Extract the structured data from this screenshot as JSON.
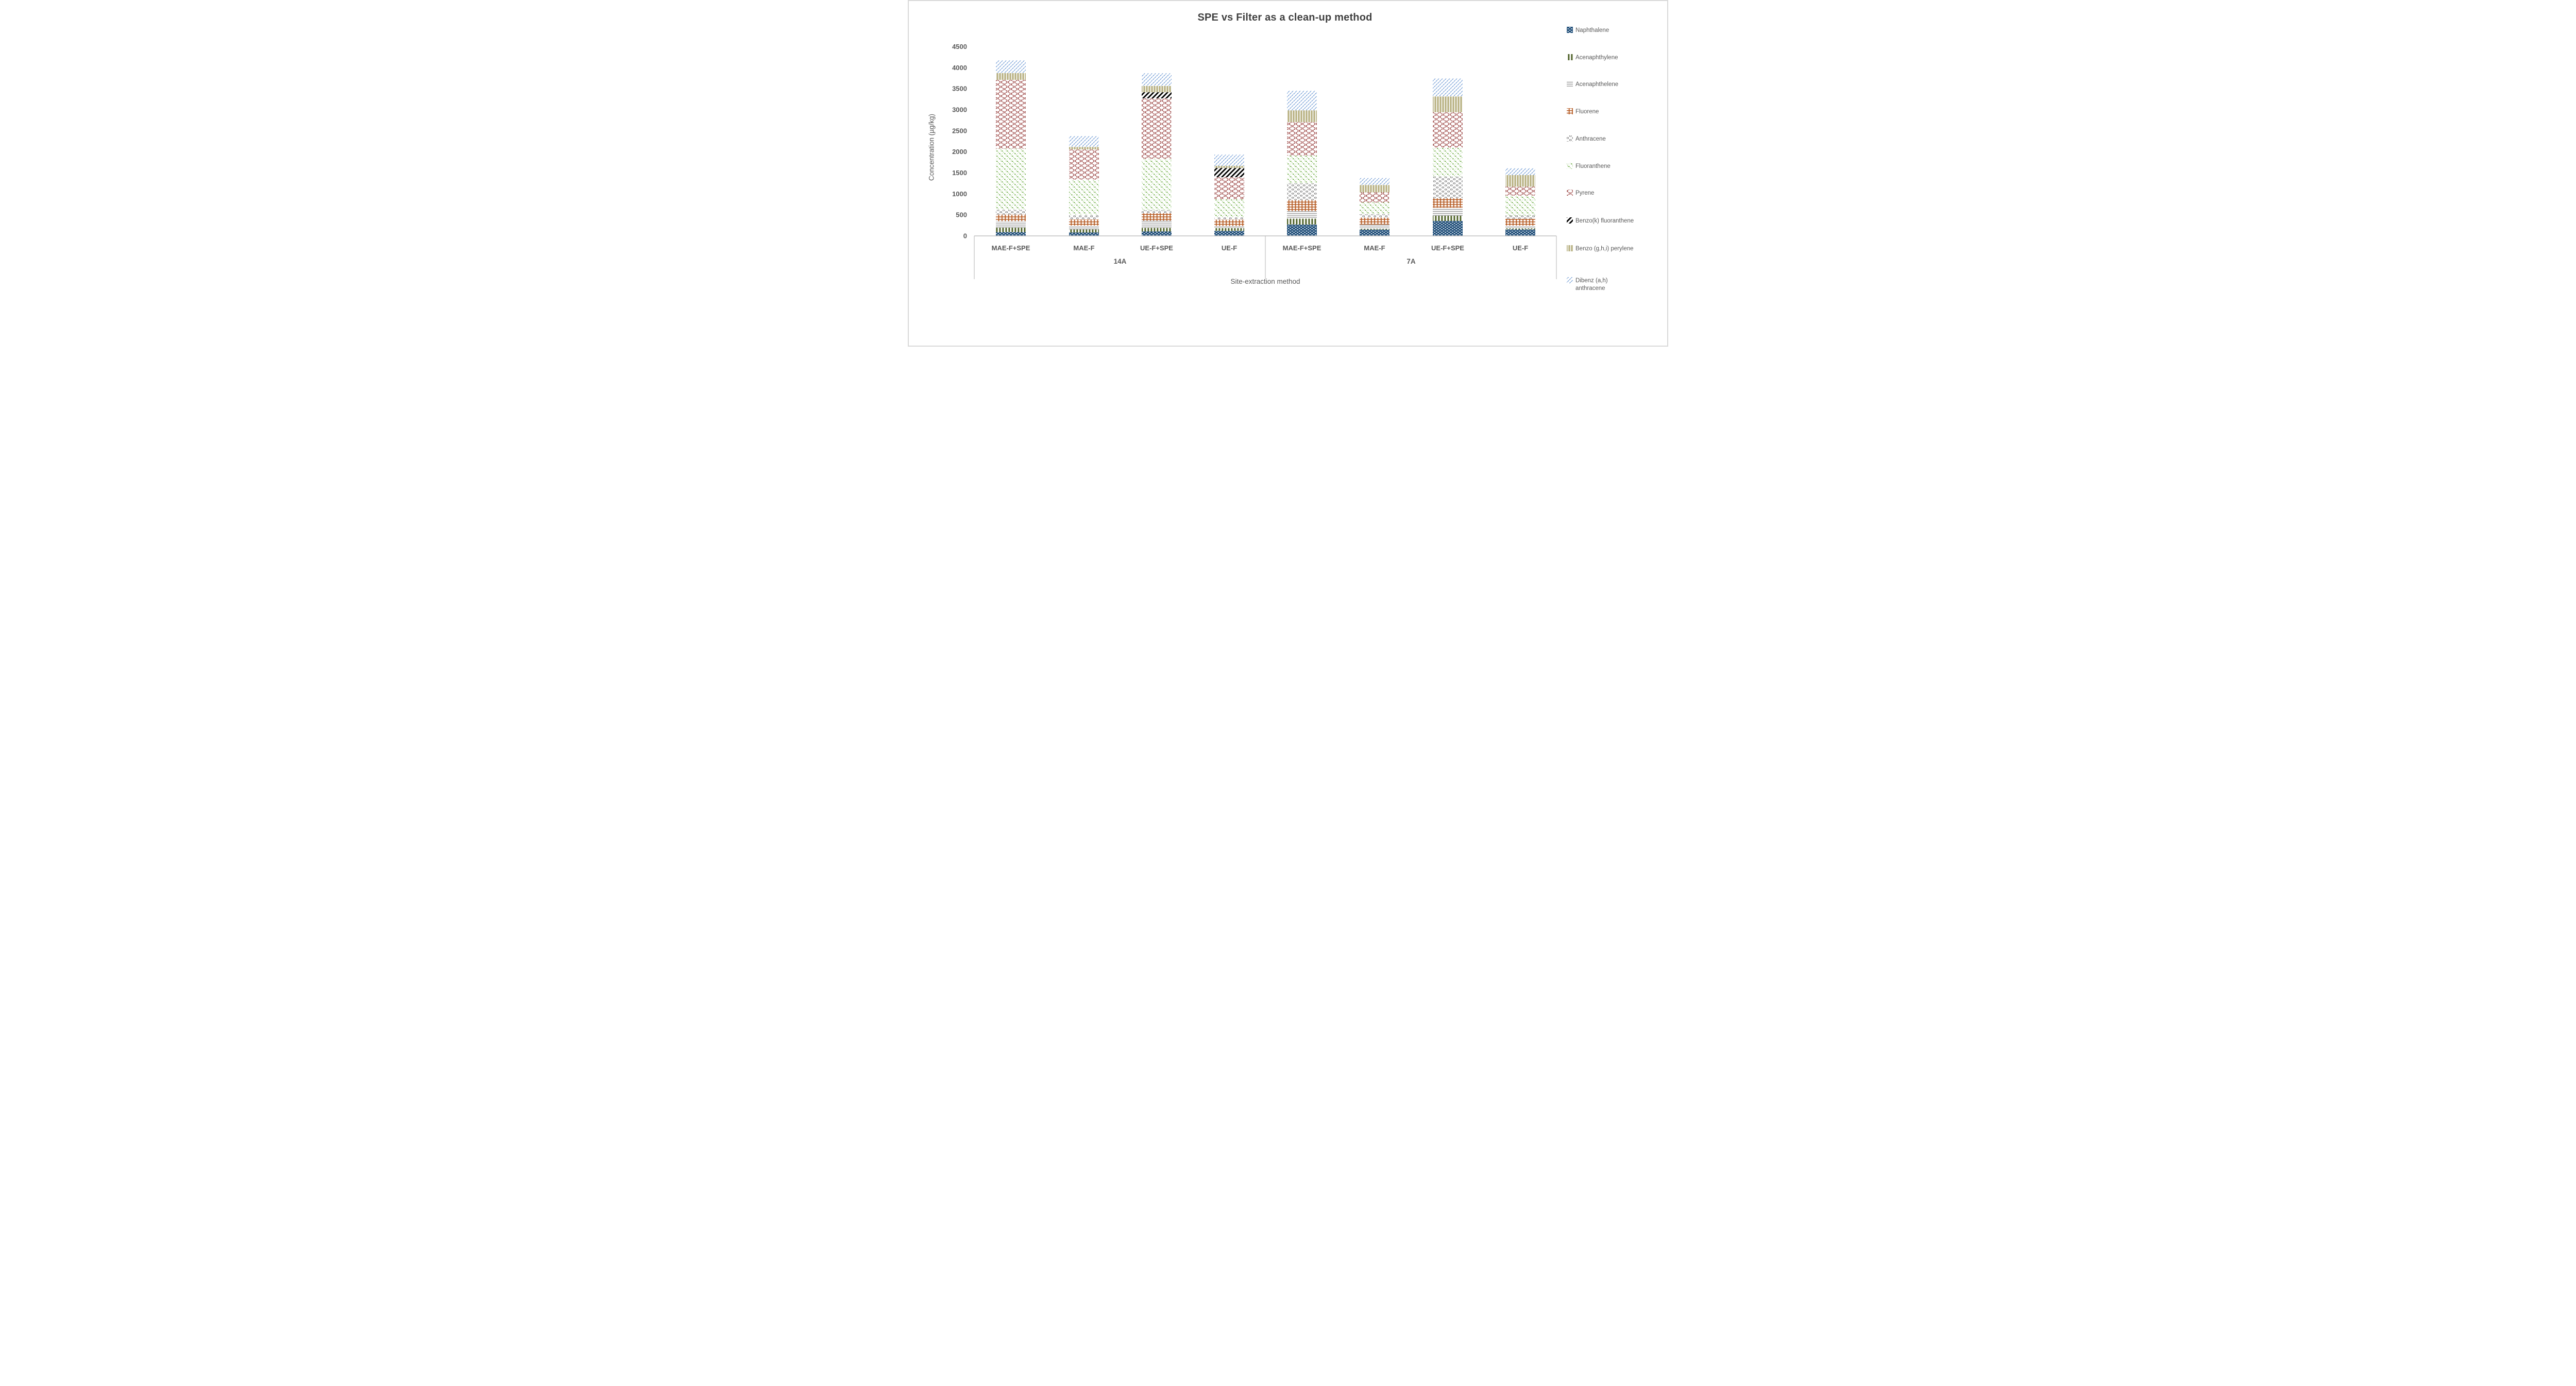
{
  "window": {
    "background": "#FFFFFF",
    "border_color": "#D9D9D9"
  },
  "chart_data": {
    "type": "bar",
    "stacked": true,
    "title": "SPE vs Filter as a clean-up method",
    "xlabel": "Site-extraction method",
    "ylabel": "Concentration (µg/kg)",
    "ylim": [
      0,
      4500
    ],
    "ytick_step": 500,
    "yticks": [
      0,
      500,
      1000,
      1500,
      2000,
      2500,
      3000,
      3500,
      4000,
      4500
    ],
    "grid": false,
    "legend_position": "right",
    "axis_color": "#BFBFBF",
    "text_color": "#595959",
    "title_color": "#3F3F3F",
    "groups": [
      {
        "label": "14A",
        "span": [
          0,
          3
        ]
      },
      {
        "label": "7A",
        "span": [
          4,
          7
        ]
      }
    ],
    "categories": [
      "MAE-F+SPE",
      "MAE-F",
      "UE-F+SPE",
      "UE-F",
      "MAE-F+SPE",
      "MAE-F",
      "UE-F+SPE",
      "UE-F"
    ],
    "series": [
      {
        "name": "Naphthalene",
        "color": "#1F4E79",
        "pattern": "navy-weave",
        "values": [
          90,
          80,
          105,
          120,
          270,
          150,
          355,
          155
        ]
      },
      {
        "name": "Acenaphthylene",
        "color": "#4F6228",
        "pattern": "olive-vertical-bars",
        "values": [
          105,
          75,
          85,
          65,
          140,
          20,
          125,
          25
        ]
      },
      {
        "name": "Acenaphthelene",
        "color": "#7F7F7F",
        "pattern": "gray-horizontal-lines",
        "values": [
          155,
          90,
          170,
          50,
          180,
          100,
          190,
          65
        ]
      },
      {
        "name": "Fluorene",
        "color": "#B4571E",
        "pattern": "orange-grid",
        "values": [
          155,
          145,
          180,
          150,
          260,
          165,
          225,
          160
        ]
      },
      {
        "name": "Anthracene",
        "color": "#7F7F7F",
        "pattern": "gray-shingle",
        "values": [
          115,
          105,
          70,
          55,
          400,
          80,
          515,
          80
        ]
      },
      {
        "name": "Fluoranthene",
        "color": "#70AD47",
        "pattern": "green-dots",
        "values": [
          1455,
          840,
          1220,
          435,
          660,
          280,
          690,
          475
        ]
      },
      {
        "name": "Pyrene",
        "color": "#943634",
        "pattern": "dark-red-waves",
        "values": [
          1635,
          720,
          1440,
          520,
          795,
          240,
          840,
          210
        ]
      },
      {
        "name": "Benzo(k) fluoranthene",
        "color": "#000000",
        "pattern": "black-diagonal",
        "values": [
          0,
          0,
          145,
          220,
          0,
          0,
          0,
          0
        ]
      },
      {
        "name": "Benzo (g,h,i) perylene",
        "color": "#9B9359",
        "pattern": "tan-vertical-stripes",
        "values": [
          160,
          60,
          150,
          50,
          280,
          175,
          375,
          275
        ]
      },
      {
        "name": "Dibenz (a,h) anthracene",
        "color": "#74A2D8",
        "pattern": "blue-diagonal-dashes",
        "values": [
          300,
          255,
          300,
          265,
          465,
          165,
          425,
          165
        ],
        "legend_lines": [
          "Dibenz (a,h)",
          "anthracene"
        ]
      }
    ],
    "totals": [
      4170,
      2370,
      3865,
      1930,
      3450,
      1375,
      3740,
      1610
    ]
  }
}
